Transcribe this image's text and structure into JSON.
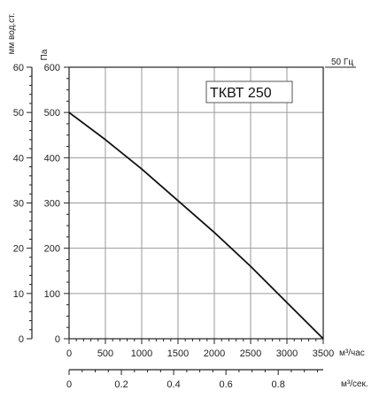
{
  "chart_data": {
    "type": "line",
    "title": "ТКВТ 250",
    "frequency_label": "50 Гц",
    "pressure_axis": {
      "unit": "Па",
      "ticks": [
        0,
        100,
        200,
        300,
        400,
        500,
        600
      ],
      "ylim": [
        0,
        600
      ]
    },
    "water_column_axis": {
      "unit": "мм вод.ст.",
      "ticks": [
        0,
        10,
        20,
        30,
        40,
        50,
        60
      ],
      "ylim": [
        0,
        60
      ]
    },
    "flow_hour_axis": {
      "unit": "м³/час",
      "ticks": [
        0,
        500,
        1000,
        1500,
        2000,
        2500,
        3000,
        3500
      ],
      "xlim": [
        0,
        3500
      ]
    },
    "flow_sec_axis": {
      "unit": "м³/сек.",
      "ticks": [
        "0",
        "0.2",
        "0.4",
        "0.6",
        "0.8"
      ],
      "values": [
        0,
        0.2,
        0.4,
        0.6,
        0.8
      ],
      "xlim": [
        0,
        0.9722
      ]
    },
    "grid": true,
    "series": [
      {
        "x": [
          0,
          500,
          1000,
          1500,
          2000,
          2500,
          3000,
          3500
        ],
        "y": [
          500,
          440,
          375,
          305,
          235,
          160,
          80,
          0
        ]
      }
    ]
  }
}
